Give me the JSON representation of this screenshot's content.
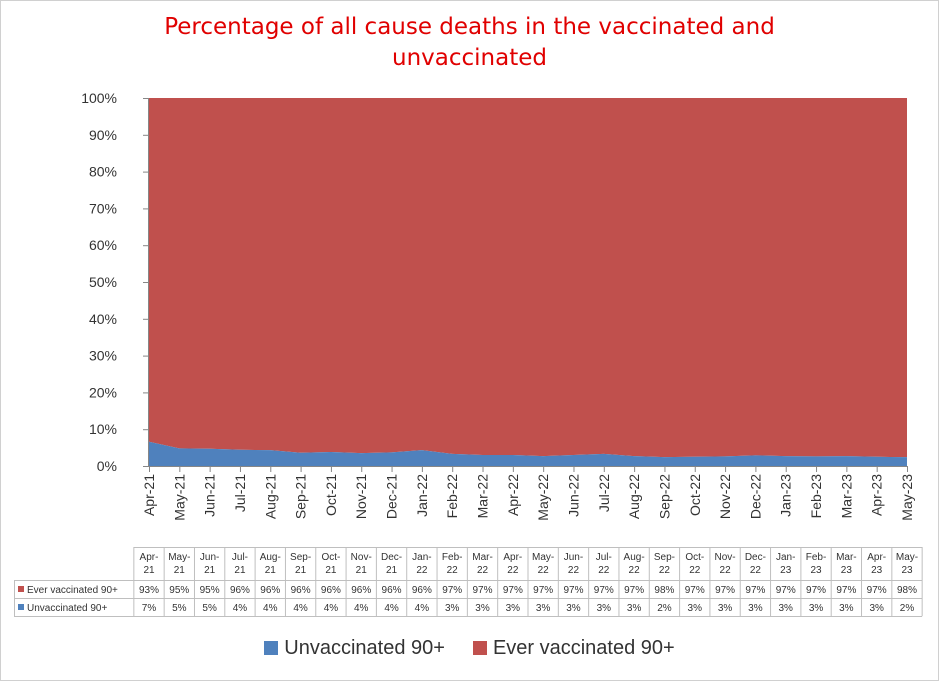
{
  "chart_data": {
    "type": "area",
    "stacked": "percent",
    "title": "Percentage of all cause deaths in the vaccinated and unvaccinated",
    "title_lines": [
      "Percentage of all cause deaths in the vaccinated and",
      "unvaccinated"
    ],
    "ylim": [
      0,
      100
    ],
    "y_ticks": [
      "0%",
      "10%",
      "20%",
      "30%",
      "40%",
      "50%",
      "60%",
      "70%",
      "80%",
      "90%",
      "100%"
    ],
    "categories": [
      "Apr-21",
      "May-21",
      "Jun-21",
      "Jul-21",
      "Aug-21",
      "Sep-21",
      "Oct-21",
      "Nov-21",
      "Dec-21",
      "Jan-22",
      "Feb-22",
      "Mar-22",
      "Apr-22",
      "May-22",
      "Jun-22",
      "Jul-22",
      "Aug-22",
      "Sep-22",
      "Oct-22",
      "Nov-22",
      "Dec-22",
      "Jan-23",
      "Feb-23",
      "Mar-23",
      "Apr-23",
      "May-23"
    ],
    "series": [
      {
        "name": "Unvaccinated 90+",
        "color": "#4f81bd",
        "values": [
          6.6,
          4.8,
          4.7,
          4.4,
          4.3,
          3.6,
          3.8,
          3.5,
          3.7,
          4.3,
          3.3,
          3.0,
          3.0,
          2.7,
          3.0,
          3.3,
          2.7,
          2.4,
          2.5,
          2.6,
          2.9,
          2.7,
          2.6,
          2.7,
          2.5,
          2.4
        ],
        "labels": [
          "7%",
          "5%",
          "5%",
          "4%",
          "4%",
          "4%",
          "4%",
          "4%",
          "4%",
          "4%",
          "3%",
          "3%",
          "3%",
          "3%",
          "3%",
          "3%",
          "3%",
          "2%",
          "3%",
          "3%",
          "3%",
          "3%",
          "3%",
          "3%",
          "3%",
          "2%"
        ]
      },
      {
        "name": "Ever vaccinated 90+",
        "color": "#c0504d",
        "values": [
          93.4,
          95.2,
          95.3,
          95.6,
          95.7,
          96.4,
          96.2,
          96.5,
          96.3,
          95.7,
          96.7,
          97.0,
          97.0,
          97.3,
          97.0,
          96.7,
          97.3,
          97.6,
          97.5,
          97.4,
          97.1,
          97.3,
          97.4,
          97.3,
          97.5,
          97.6
        ],
        "labels": [
          "93%",
          "95%",
          "95%",
          "96%",
          "96%",
          "96%",
          "96%",
          "96%",
          "96%",
          "96%",
          "97%",
          "97%",
          "97%",
          "97%",
          "97%",
          "97%",
          "97%",
          "98%",
          "97%",
          "97%",
          "97%",
          "97%",
          "97%",
          "97%",
          "97%",
          "98%"
        ]
      }
    ],
    "table_row_order": [
      "Ever vaccinated 90+",
      "Unvaccinated 90+"
    ],
    "legend_order": [
      "Unvaccinated 90+",
      "Ever vaccinated 90+"
    ],
    "legend_position": "bottom",
    "grid": false
  }
}
